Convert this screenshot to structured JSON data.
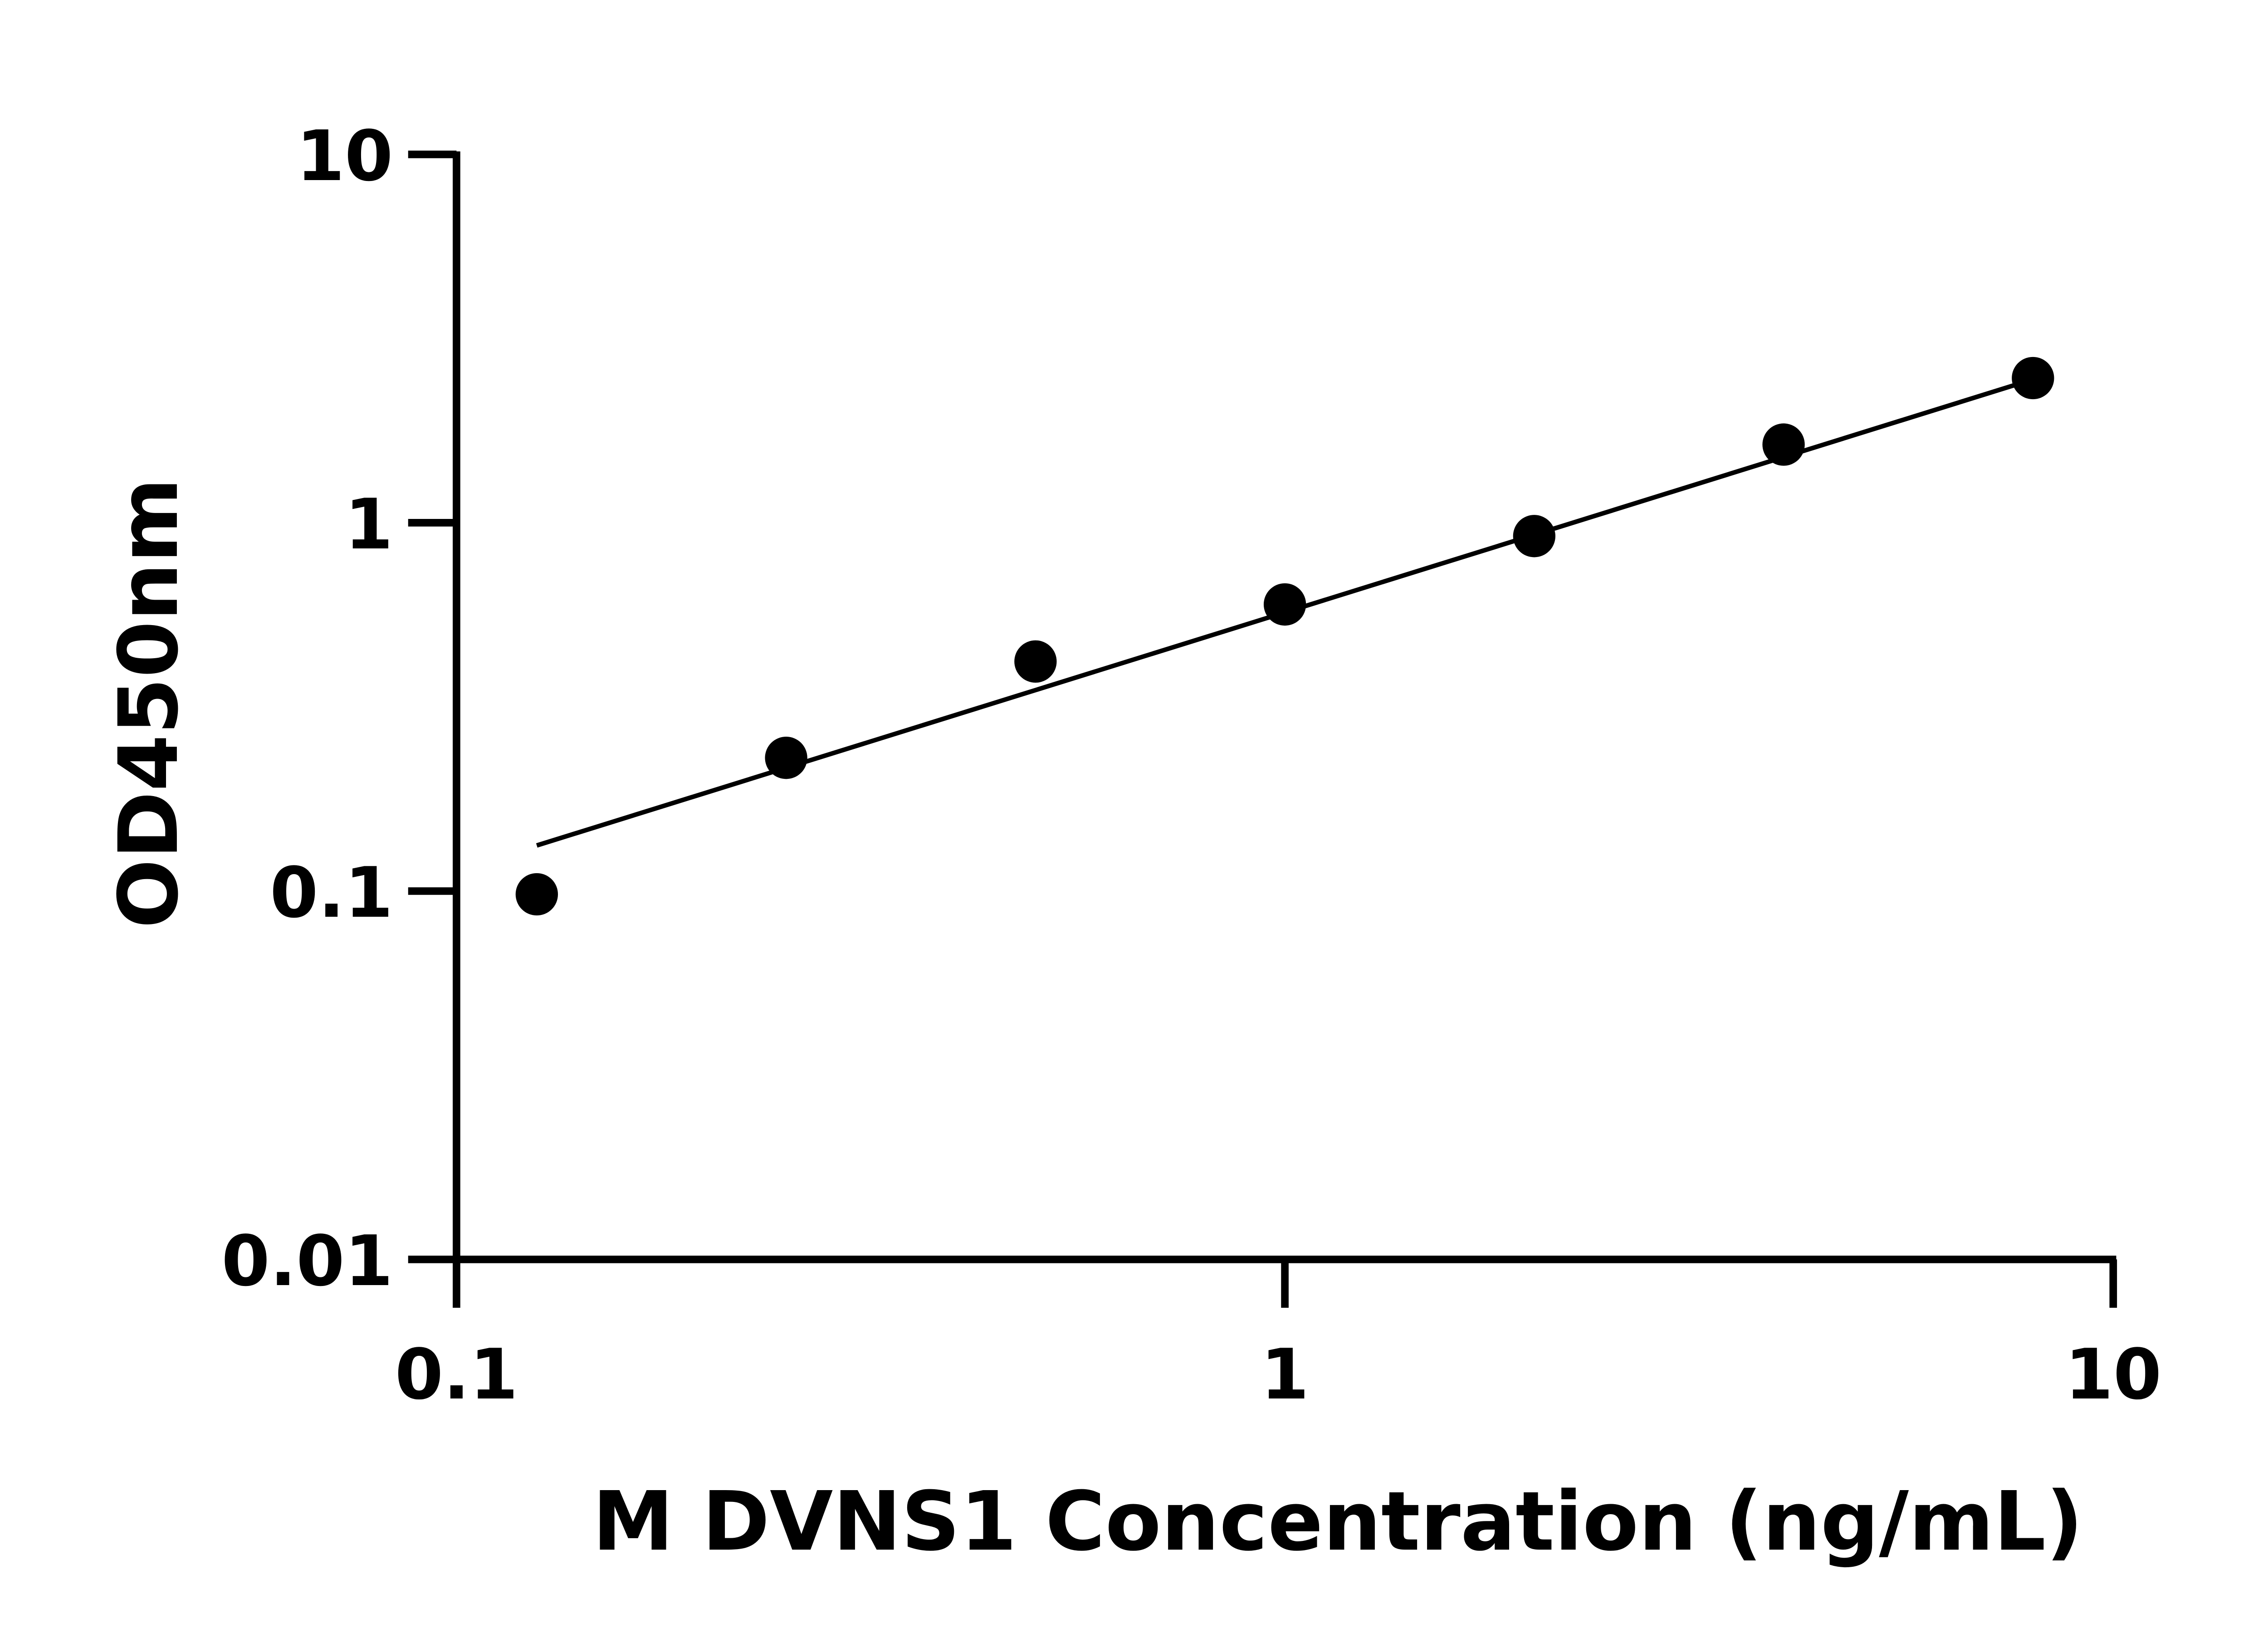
{
  "chart_data": {
    "type": "scatter",
    "title": "",
    "xlabel": "M DVNS1 Concentration (ng/mL)",
    "ylabel": "OD450nm",
    "xscale": "log",
    "yscale": "log",
    "xlim": [
      0.1,
      10
    ],
    "ylim": [
      0.01,
      10
    ],
    "xticks": [
      "0.1",
      "1",
      "10"
    ],
    "yticks": [
      "0.01",
      "0.1",
      "1",
      "10"
    ],
    "grid": false,
    "legend": "none",
    "series": [
      {
        "x": [
          0.125,
          0.25,
          0.5,
          1,
          2,
          4,
          8
        ],
        "y": [
          0.098,
          0.23,
          0.42,
          0.6,
          0.92,
          1.63,
          2.47
        ]
      }
    ],
    "fit_line": {
      "x": [
        0.125,
        8
      ],
      "y": [
        0.133,
        2.45
      ]
    },
    "color": "#000000"
  }
}
